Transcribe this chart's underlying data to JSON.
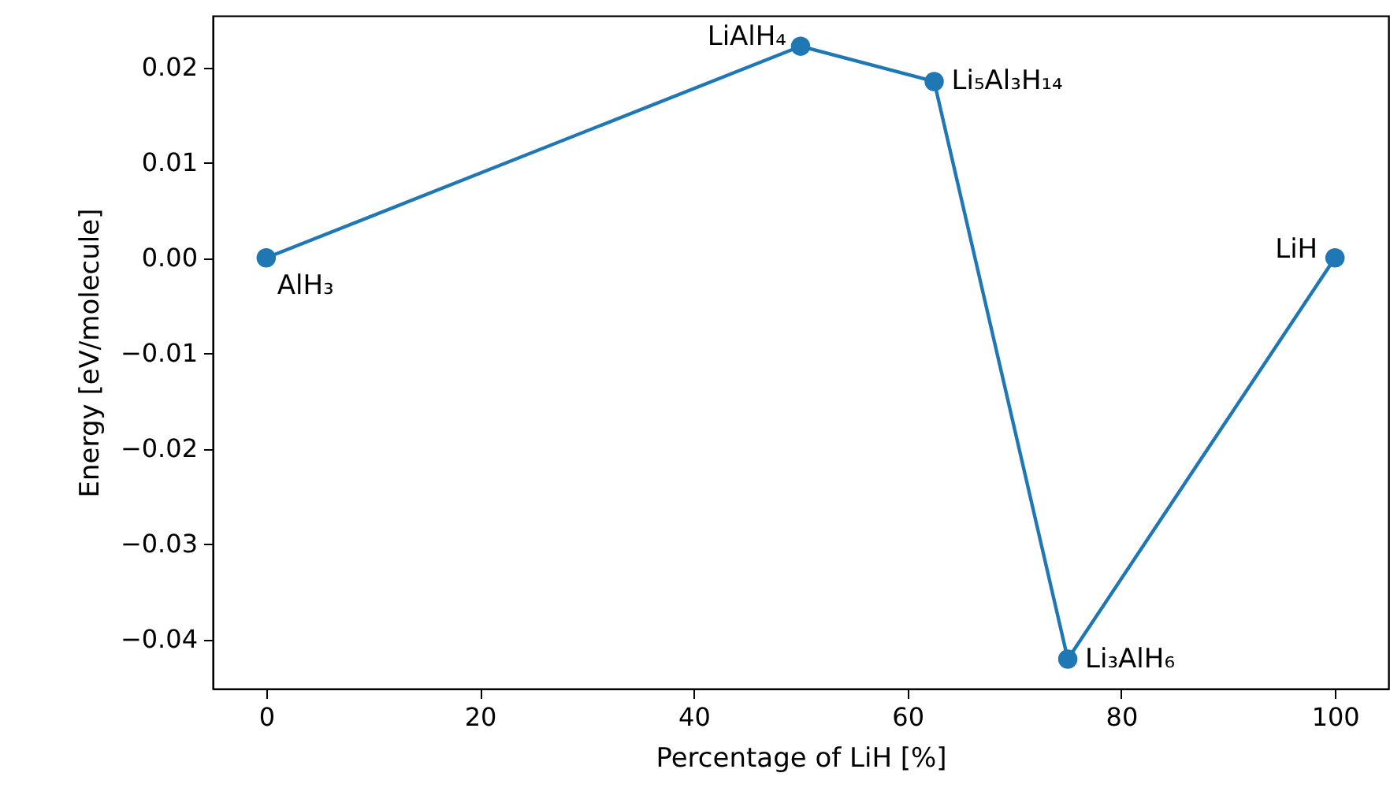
{
  "chart_data": {
    "type": "line",
    "xlabel": "Percentage of LiH [%]",
    "ylabel": "Energy [eV/molecule]",
    "x": [
      0,
      50,
      62.5,
      75,
      100
    ],
    "series": [
      {
        "color": "#1f77b4",
        "values": [
          0,
          0.0222,
          0.0185,
          -0.0421,
          0
        ]
      }
    ],
    "marker": "circle",
    "line_style": "solid",
    "xlim": [
      -5,
      105
    ],
    "xticks": [
      0,
      20,
      40,
      60,
      80,
      100
    ],
    "ylim": [
      -0.0452,
      0.0254
    ],
    "yticks": [
      {
        "value": -0.04,
        "label": "−0.04"
      },
      {
        "value": -0.03,
        "label": "−0.03"
      },
      {
        "value": -0.02,
        "label": "−0.02"
      },
      {
        "value": -0.01,
        "label": "−0.01"
      },
      {
        "value": 0,
        "label": "0.00"
      },
      {
        "value": 0.01,
        "label": "0.01"
      },
      {
        "value": 0.02,
        "label": "0.02"
      }
    ],
    "annotations": [
      {
        "text": "AlH₃",
        "x": 0,
        "y": 0
      },
      {
        "text": "LiAlH₄",
        "x": 50,
        "y": 0.0222
      },
      {
        "text": "Li₅Al₃H₁₄",
        "x": 62.5,
        "y": 0.0185
      },
      {
        "text": "Li₃AlH₆",
        "x": 75,
        "y": -0.0421
      },
      {
        "text": "LiH",
        "x": 100,
        "y": 0
      }
    ]
  }
}
